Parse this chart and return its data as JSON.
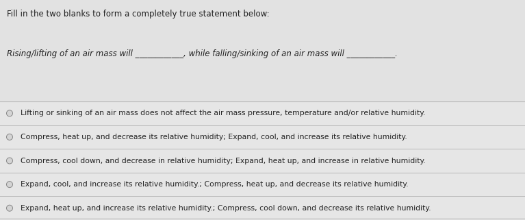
{
  "title": "Fill in the two blanks to form a completely true statement below:",
  "question": "Rising/lifting of an air mass will ____________, while falling/sinking of an air mass will ____________.",
  "options": [
    "Lifting or sinking of an air mass does not affect the air mass pressure, temperature and/or relative humidity.",
    "Compress, heat up, and decrease its relative humidity; Expand, cool, and increase its relative humidity.",
    "Compress, cool down, and decrease in relative humidity; Expand, heat up, and increase in relative humidity.",
    "Expand, cool, and increase its relative humidity.; Compress, heat up, and decrease its relative humidity.",
    "Expand, heat up, and increase its relative humidity.; Compress, cool down, and decrease its relative humidity."
  ],
  "bg_color": "#d8d8d8",
  "top_panel_color": "#e2e2e2",
  "options_panel_color": "#e6e6e6",
  "text_color": "#222222",
  "divider_color": "#b8b8b8",
  "title_fontsize": 8.5,
  "question_fontsize": 8.5,
  "option_fontsize": 7.8,
  "fig_width": 7.67,
  "fig_height": 3.21,
  "dpi": 100
}
